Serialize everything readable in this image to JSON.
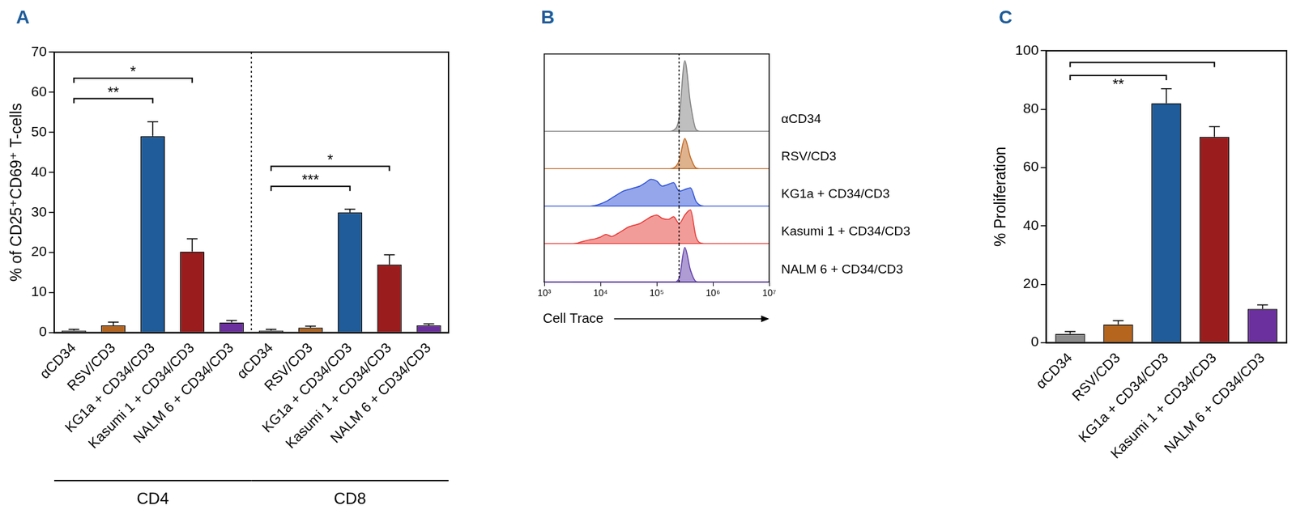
{
  "chart_data": [
    {
      "type": "bar",
      "title": "A",
      "categories": [
        "αCD34",
        "RSV/CD3",
        "KG1a + CD34/CD3",
        "Kasumi 1 + CD34/CD3",
        "NALM 6 + CD34/CD3",
        "αCD34",
        "RSV/CD3",
        "KG1a + CD34/CD3",
        "Kasumi 1 + CD34/CD3",
        "NALM 6 + CD34/CD3"
      ],
      "values": [
        0.5,
        1.8,
        49,
        20.2,
        2.5,
        0.5,
        1.2,
        30,
        17,
        1.8
      ],
      "errors": [
        0.3,
        0.8,
        3.6,
        3.2,
        0.5,
        0.3,
        0.4,
        0.8,
        2.4,
        0.4
      ],
      "colors": [
        "#8c8c8c",
        "#b5651d",
        "#1f5c99",
        "#9b1c1c",
        "#6b2f9e",
        "#8c8c8c",
        "#b5651d",
        "#1f5c99",
        "#9b1c1c",
        "#6b2f9e"
      ],
      "ylabel": "% of CD25⁺CD69⁺ T-cells",
      "ylim": [
        0,
        70
      ],
      "yticks": [
        0,
        10,
        20,
        30,
        40,
        50,
        60,
        70
      ],
      "groups": [
        {
          "label": "CD4",
          "from": 0,
          "to": 4
        },
        {
          "label": "CD8",
          "from": 5,
          "to": 9
        }
      ],
      "brackets": [
        {
          "from": 0,
          "to": 2,
          "y": 58.4,
          "label": "**"
        },
        {
          "from": 0,
          "to": 3,
          "y": 63.5,
          "label": "*"
        },
        {
          "from": 5,
          "to": 7,
          "y": 36.5,
          "label": "***"
        },
        {
          "from": 5,
          "to": 8,
          "y": 41.5,
          "label": "*"
        }
      ],
      "grid": false
    },
    {
      "type": "line",
      "title": "B",
      "xlabel": "Cell Trace",
      "x": [
        3162,
        3981,
        5012,
        6310,
        7943,
        10000,
        12589,
        15849,
        19953,
        25119,
        31623,
        39811,
        50119,
        63096,
        79433,
        100000,
        125893,
        158489,
        199526,
        251189,
        316228,
        398107,
        501187,
        630957,
        794328,
        1000000
      ],
      "series": [
        {
          "name": "αCD34",
          "color": "#7f7f7f",
          "values": [
            0,
            0,
            0,
            0,
            0,
            0,
            0,
            0,
            0,
            0,
            0,
            0,
            0,
            0,
            0,
            0,
            0,
            0,
            0.02,
            0.2,
            1.0,
            0.4,
            0.03,
            0,
            0,
            0
          ]
        },
        {
          "name": "RSV/CD3",
          "color": "#c0661e",
          "values": [
            0,
            0,
            0,
            0,
            0,
            0,
            0,
            0,
            0,
            0,
            0,
            0,
            0,
            0,
            0,
            0,
            0,
            0,
            0.03,
            0.25,
            0.9,
            0.35,
            0.03,
            0,
            0,
            0
          ]
        },
        {
          "name": "KG1a + CD34/CD3",
          "color": "#2c4fd6",
          "values": [
            0,
            0,
            0,
            0,
            0.03,
            0.08,
            0.15,
            0.25,
            0.35,
            0.45,
            0.5,
            0.55,
            0.6,
            0.7,
            0.8,
            0.75,
            0.6,
            0.65,
            0.7,
            0.45,
            0.5,
            0.55,
            0.15,
            0.02,
            0,
            0
          ]
        },
        {
          "name": "Kasumi 1 + CD34/CD3",
          "color": "#e53935",
          "values": [
            0,
            0.03,
            0.08,
            0.12,
            0.15,
            0.2,
            0.28,
            0.22,
            0.3,
            0.4,
            0.5,
            0.55,
            0.6,
            0.7,
            0.8,
            0.85,
            0.75,
            0.72,
            0.8,
            0.6,
            0.85,
            1.0,
            0.2,
            0.02,
            0,
            0
          ]
        },
        {
          "name": "NALM 6 + CD34/CD3",
          "color": "#5e3aa8",
          "values": [
            0,
            0,
            0,
            0,
            0,
            0,
            0,
            0,
            0,
            0,
            0,
            0,
            0,
            0,
            0,
            0,
            0,
            0,
            0,
            0.12,
            1.0,
            0.35,
            0.02,
            0,
            0,
            0
          ]
        }
      ],
      "xlim": [
        1000,
        10000000
      ],
      "xticks": [
        {
          "value": 1000,
          "label": "10³"
        },
        {
          "value": 10000,
          "label": "10⁴"
        },
        {
          "value": 100000,
          "label": "10⁵"
        },
        {
          "value": 1000000,
          "label": "10⁶"
        },
        {
          "value": 10000000,
          "label": "10⁷"
        }
      ],
      "log": "x",
      "threshold": 250000,
      "ylim": [
        0,
        1.1
      ],
      "tick_labels": "x",
      "grid": false
    },
    {
      "type": "bar",
      "title": "C",
      "categories": [
        "αCD34",
        "RSV/CD3",
        "KG1a + CD34/CD3",
        "Kasumi 1 + CD34/CD3",
        "NALM 6 + CD34/CD3"
      ],
      "values": [
        3,
        6.2,
        82,
        70.5,
        11.5
      ],
      "errors": [
        0.8,
        1.3,
        5,
        3.5,
        1.4
      ],
      "colors": [
        "#8c8c8c",
        "#b5651d",
        "#1f5c99",
        "#9b1c1c",
        "#6b2f9e"
      ],
      "ylabel": "% Proliferation",
      "ylim": [
        0,
        100
      ],
      "yticks": [
        0,
        20,
        40,
        60,
        80,
        100
      ],
      "brackets": [
        {
          "from": 0,
          "to": 2,
          "y": 91.5,
          "label": "**"
        },
        {
          "from": 0,
          "to": 3,
          "y": 96
        }
      ],
      "grid": false
    }
  ]
}
